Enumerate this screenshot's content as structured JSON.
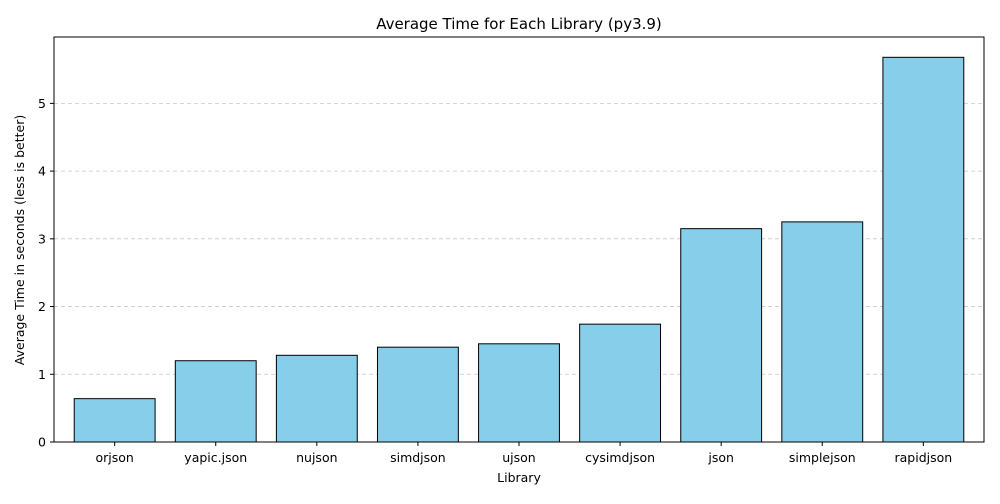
{
  "chart_data": {
    "type": "bar",
    "title": "Average Time for Each Library (py3.9)",
    "xlabel": "Library",
    "ylabel": "Average Time in seconds (less is better)",
    "categories": [
      "orjson",
      "yapic.json",
      "nujson",
      "simdjson",
      "ujson",
      "cysimdjson",
      "json",
      "simplejson",
      "rapidjson"
    ],
    "values": [
      0.64,
      1.2,
      1.28,
      1.4,
      1.45,
      1.74,
      3.15,
      3.25,
      5.68
    ],
    "ylim": [
      0,
      5.98
    ],
    "yticks": [
      0,
      1,
      2,
      3,
      4,
      5
    ],
    "grid": "y-dashed",
    "colors": {
      "bar_fill": "#87ceeb",
      "bar_edge": "#000000",
      "grid": "#c8c8c8"
    }
  }
}
